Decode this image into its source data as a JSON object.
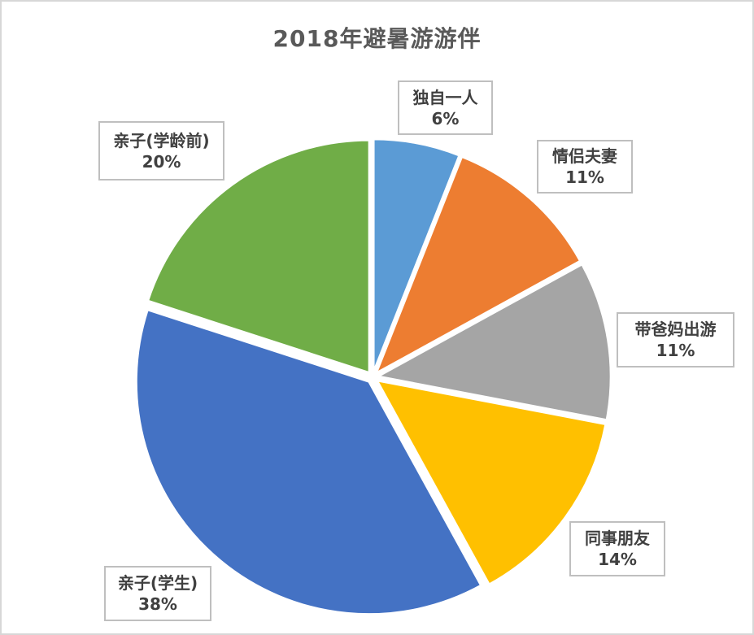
{
  "chart_data": {
    "type": "pie",
    "title": "2018年避暑游游伴",
    "start_angle_deg": 0,
    "direction": "clockwise",
    "style": "exploded",
    "legend": "none",
    "categories": [
      "独自一人",
      "情侣夫妻",
      "带爸妈出游",
      "同事朋友",
      "亲子(学生)",
      "亲子(学龄前)"
    ],
    "values": [
      6,
      11,
      11,
      14,
      38,
      20
    ],
    "slices": [
      {
        "label": "独自一人",
        "value": 6,
        "pct_label": "6%",
        "color": "#5B9BD5"
      },
      {
        "label": "情侣夫妻",
        "value": 11,
        "pct_label": "11%",
        "color": "#ED7D31"
      },
      {
        "label": "带爸妈出游",
        "value": 11,
        "pct_label": "11%",
        "color": "#A5A5A5"
      },
      {
        "label": "同事朋友",
        "value": 14,
        "pct_label": "14%",
        "color": "#FFC000"
      },
      {
        "label": "亲子(学生)",
        "value": 38,
        "pct_label": "38%",
        "color": "#4472C4"
      },
      {
        "label": "亲子(学龄前)",
        "value": 20,
        "pct_label": "20%",
        "color": "#70AD47"
      }
    ],
    "colors": {
      "title_text": "#595959",
      "label_text": "#404040",
      "label_border": "#BFBFBF",
      "chart_border": "#D7D7D7",
      "background": "#FFFFFF",
      "slice_separator": "#FFFFFF"
    }
  }
}
